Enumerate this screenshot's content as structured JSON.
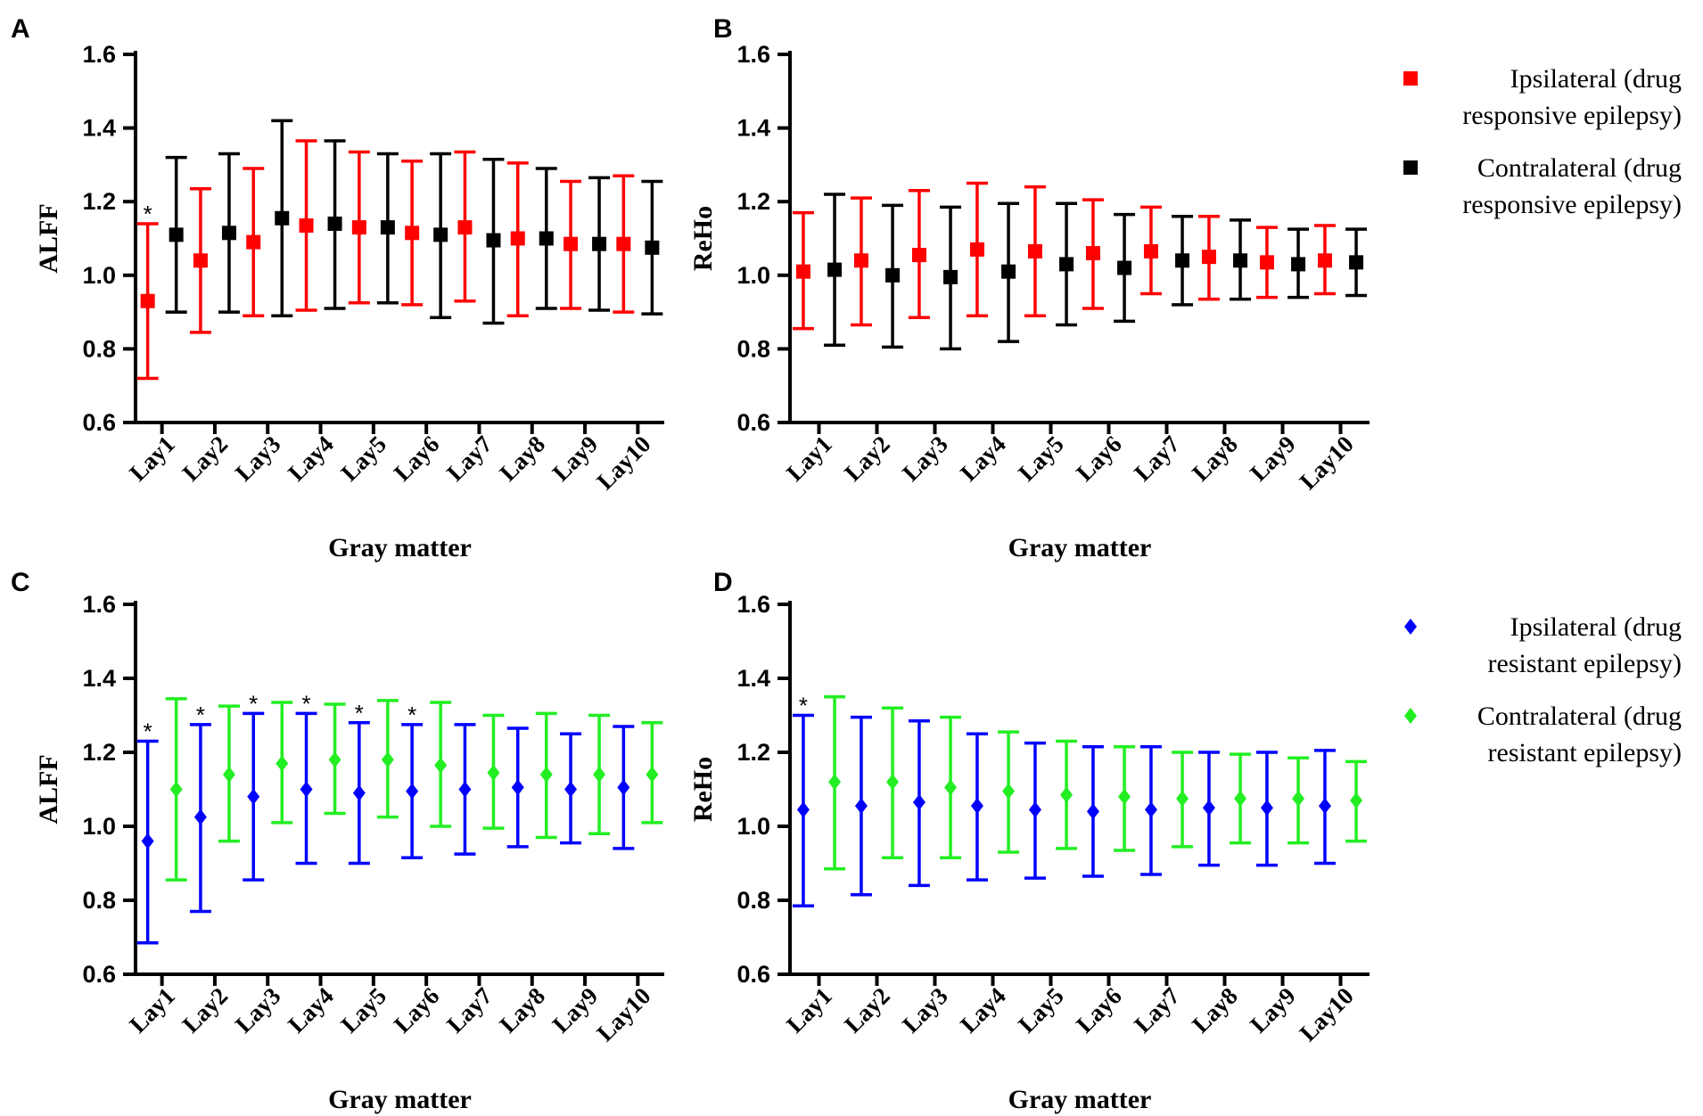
{
  "figure": {
    "legends": [
      {
        "group": "top",
        "items": [
          {
            "line1": "Ipsilateral (drug",
            "line2": "responsive epilepsy)",
            "color": "#ff0000",
            "marker": "square"
          },
          {
            "line1": "Contralateral (drug",
            "line2": "responsive epilepsy)",
            "color": "#000000",
            "marker": "square"
          }
        ]
      },
      {
        "group": "bottom",
        "items": [
          {
            "line1": "Ipsilateral (drug",
            "line2": "resistant epilepsy)",
            "color": "#0000ff",
            "marker": "diamond"
          },
          {
            "line1": "Contralateral (drug",
            "line2": "resistant epilepsy)",
            "color": "#22ee22",
            "marker": "diamond"
          }
        ]
      }
    ]
  },
  "chart_data": [
    {
      "panel": "A",
      "type": "errorbar",
      "xlabel": "Gray matter",
      "ylabel": "ALFF",
      "ylim": [
        0.6,
        1.6
      ],
      "yticks": [
        "0.6",
        "0.8",
        "1.0",
        "1.2",
        "1.4",
        "1.6"
      ],
      "categories": [
        "Lay1",
        "Lay2",
        "Lay3",
        "Lay4",
        "Lay5",
        "Lay6",
        "Lay7",
        "Lay8",
        "Lay9",
        "Lay10"
      ],
      "significance": [
        "*",
        "",
        "",
        "",
        "",
        "",
        "",
        "",
        "",
        ""
      ],
      "series": [
        {
          "name": "Ipsilateral (drug responsive epilepsy)",
          "color": "#ff0000",
          "marker": "square",
          "mean": [
            0.93,
            1.04,
            1.09,
            1.135,
            1.13,
            1.115,
            1.13,
            1.1,
            1.085,
            1.085
          ],
          "lower": [
            0.72,
            0.845,
            0.89,
            0.905,
            0.925,
            0.92,
            0.93,
            0.89,
            0.91,
            0.9
          ],
          "upper": [
            1.14,
            1.235,
            1.29,
            1.365,
            1.335,
            1.31,
            1.335,
            1.305,
            1.255,
            1.27
          ]
        },
        {
          "name": "Contralateral (drug responsive epilepsy)",
          "color": "#000000",
          "marker": "square",
          "mean": [
            1.11,
            1.115,
            1.155,
            1.14,
            1.13,
            1.11,
            1.095,
            1.1,
            1.085,
            1.075
          ],
          "lower": [
            0.9,
            0.9,
            0.89,
            0.91,
            0.925,
            0.885,
            0.87,
            0.91,
            0.905,
            0.895
          ],
          "upper": [
            1.32,
            1.33,
            1.42,
            1.365,
            1.33,
            1.33,
            1.315,
            1.29,
            1.265,
            1.255
          ]
        }
      ]
    },
    {
      "panel": "B",
      "type": "errorbar",
      "xlabel": "Gray matter",
      "ylabel": "ReHo",
      "ylim": [
        0.6,
        1.6
      ],
      "yticks": [
        "0.6",
        "0.8",
        "1.0",
        "1.2",
        "1.4",
        "1.6"
      ],
      "categories": [
        "Lay1",
        "Lay2",
        "Lay3",
        "Lay4",
        "Lay5",
        "Lay6",
        "Lay7",
        "Lay8",
        "Lay9",
        "Lay10"
      ],
      "significance": [
        "",
        "",
        "",
        "",
        "",
        "",
        "",
        "",
        "",
        ""
      ],
      "series": [
        {
          "name": "Ipsilateral (drug responsive epilepsy)",
          "color": "#ff0000",
          "marker": "square",
          "mean": [
            1.01,
            1.04,
            1.055,
            1.07,
            1.065,
            1.06,
            1.065,
            1.05,
            1.035,
            1.04
          ],
          "lower": [
            0.855,
            0.865,
            0.885,
            0.89,
            0.89,
            0.91,
            0.95,
            0.935,
            0.94,
            0.95
          ],
          "upper": [
            1.17,
            1.21,
            1.23,
            1.25,
            1.24,
            1.205,
            1.185,
            1.16,
            1.13,
            1.135
          ]
        },
        {
          "name": "Contralateral (drug responsive epilepsy)",
          "color": "#000000",
          "marker": "square",
          "mean": [
            1.015,
            1.0,
            0.995,
            1.01,
            1.03,
            1.02,
            1.04,
            1.04,
            1.03,
            1.035
          ],
          "lower": [
            0.81,
            0.805,
            0.8,
            0.82,
            0.865,
            0.875,
            0.92,
            0.935,
            0.94,
            0.945
          ],
          "upper": [
            1.22,
            1.19,
            1.185,
            1.195,
            1.195,
            1.165,
            1.16,
            1.15,
            1.125,
            1.125
          ]
        }
      ]
    },
    {
      "panel": "C",
      "type": "errorbar",
      "xlabel": "Gray matter",
      "ylabel": "ALFF",
      "ylim": [
        0.6,
        1.6
      ],
      "yticks": [
        "0.6",
        "0.8",
        "1.0",
        "1.2",
        "1.4",
        "1.6"
      ],
      "categories": [
        "Lay1",
        "Lay2",
        "Lay3",
        "Lay4",
        "Lay5",
        "Lay6",
        "Lay7",
        "Lay8",
        "Lay9",
        "Lay10"
      ],
      "significance": [
        "*",
        "*",
        "*",
        "*",
        "*",
        "*",
        "",
        "",
        "",
        ""
      ],
      "series": [
        {
          "name": "Ipsilateral (drug resistant epilepsy)",
          "color": "#0000ff",
          "marker": "diamond",
          "mean": [
            0.96,
            1.025,
            1.08,
            1.1,
            1.09,
            1.095,
            1.1,
            1.105,
            1.1,
            1.105
          ],
          "lower": [
            0.685,
            0.77,
            0.855,
            0.9,
            0.9,
            0.915,
            0.925,
            0.945,
            0.955,
            0.94
          ],
          "upper": [
            1.23,
            1.275,
            1.305,
            1.305,
            1.28,
            1.275,
            1.275,
            1.265,
            1.25,
            1.27
          ]
        },
        {
          "name": "Contralateral (drug resistant epilepsy)",
          "color": "#22ee22",
          "marker": "diamond",
          "mean": [
            1.1,
            1.14,
            1.17,
            1.18,
            1.18,
            1.165,
            1.145,
            1.14,
            1.14,
            1.14
          ],
          "lower": [
            0.855,
            0.96,
            1.01,
            1.035,
            1.025,
            1.0,
            0.995,
            0.97,
            0.98,
            1.01
          ],
          "upper": [
            1.345,
            1.325,
            1.335,
            1.33,
            1.34,
            1.335,
            1.3,
            1.305,
            1.3,
            1.28
          ]
        }
      ]
    },
    {
      "panel": "D",
      "type": "errorbar",
      "xlabel": "Gray matter",
      "ylabel": "ReHo",
      "ylim": [
        0.6,
        1.6
      ],
      "yticks": [
        "0.6",
        "0.8",
        "1.0",
        "1.2",
        "1.4",
        "1.6"
      ],
      "categories": [
        "Lay1",
        "Lay2",
        "Lay3",
        "Lay4",
        "Lay5",
        "Lay6",
        "Lay7",
        "Lay8",
        "Lay9",
        "Lay10"
      ],
      "significance": [
        "*",
        "",
        "",
        "",
        "",
        "",
        "",
        "",
        "",
        ""
      ],
      "series": [
        {
          "name": "Ipsilateral (drug resistant epilepsy)",
          "color": "#0000ff",
          "marker": "diamond",
          "mean": [
            1.045,
            1.055,
            1.065,
            1.055,
            1.045,
            1.04,
            1.045,
            1.05,
            1.05,
            1.055
          ],
          "lower": [
            0.785,
            0.815,
            0.84,
            0.855,
            0.86,
            0.865,
            0.87,
            0.895,
            0.895,
            0.9
          ],
          "upper": [
            1.3,
            1.295,
            1.285,
            1.25,
            1.225,
            1.215,
            1.215,
            1.2,
            1.2,
            1.205
          ]
        },
        {
          "name": "Contralateral (drug resistant epilepsy)",
          "color": "#22ee22",
          "marker": "diamond",
          "mean": [
            1.12,
            1.12,
            1.105,
            1.095,
            1.085,
            1.08,
            1.075,
            1.075,
            1.075,
            1.07
          ],
          "lower": [
            0.885,
            0.915,
            0.915,
            0.93,
            0.94,
            0.935,
            0.945,
            0.955,
            0.955,
            0.96
          ],
          "upper": [
            1.35,
            1.32,
            1.295,
            1.255,
            1.23,
            1.215,
            1.2,
            1.195,
            1.185,
            1.175
          ]
        }
      ]
    }
  ]
}
